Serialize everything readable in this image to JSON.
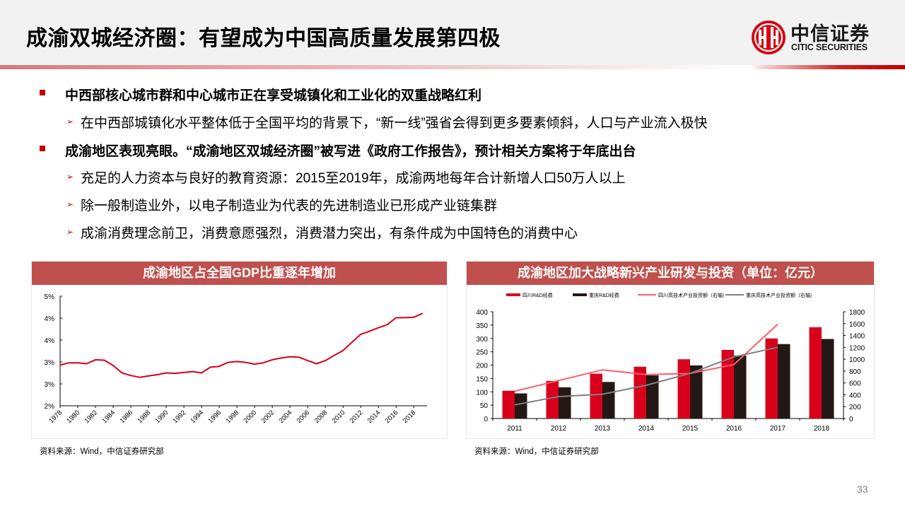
{
  "header": {
    "title": "成渝双城经济圈：有望成为中国高质量发展第四极",
    "logo_cn": "中信证券",
    "logo_en": "CITIC SECURITIES"
  },
  "bullets": [
    {
      "level": 1,
      "text": "中西部核心城市群和中心城市正在享受城镇化和工业化的双重战略红利"
    },
    {
      "level": 2,
      "text": "在中西部城镇化水平整体低于全国平均的背景下，“新一线”强省会得到更多要素倾斜，人口与产业流入极快"
    },
    {
      "level": 1,
      "text": "成渝地区表现亮眼。“成渝地区双城经济圈”被写进《政府工作报告》，预计相关方案将于年底出台"
    },
    {
      "level": 2,
      "text": "充足的人力资本与良好的教育资源：2015至2019年，成渝两地每年合计新增人口50万人以上"
    },
    {
      "level": 2,
      "text": "除一般制造业外，以电子制造业为代表的先进制造业已形成产业链集群"
    },
    {
      "level": 2,
      "text": "成渝消费理念前卫，消费意愿强烈，消费潜力突出，有条件成为中国特色的消费中心"
    }
  ],
  "colors": {
    "accent": "#c00000",
    "panel_header": "#c0504d",
    "line_red": "#d9001b",
    "bar_red": "#d9001b",
    "bar_black": "#231815",
    "line_pink": "#ff5c6c",
    "line_gray": "#7f7f7f"
  },
  "chart_data": [
    {
      "type": "line",
      "title": "成渝地区占全国GDP比重逐年增加",
      "xlabel": "",
      "ylabel": "",
      "ylim": [
        2.5,
        5.0
      ],
      "ytick_values": [
        2.5,
        3.0,
        3.5,
        4.0,
        4.5,
        5.0
      ],
      "ytick_labels": [
        "2%",
        "3%",
        "3%",
        "4%",
        "4%",
        "5%"
      ],
      "xtick_labels": [
        "1978",
        "1980",
        "1982",
        "1984",
        "1986",
        "1988",
        "1990",
        "1992",
        "1994",
        "1996",
        "1998",
        "2000",
        "2002",
        "2004",
        "2006",
        "2008",
        "2010",
        "2012",
        "2014",
        "2016",
        "2018"
      ],
      "grid": false,
      "legend": null,
      "x": [
        1978,
        1979,
        1980,
        1981,
        1982,
        1983,
        1984,
        1985,
        1986,
        1987,
        1988,
        1989,
        1990,
        1991,
        1992,
        1993,
        1994,
        1995,
        1996,
        1997,
        1998,
        1999,
        2000,
        2001,
        2002,
        2003,
        2004,
        2005,
        2006,
        2007,
        2008,
        2009,
        2010,
        2011,
        2012,
        2013,
        2014,
        2015,
        2016,
        2017,
        2018,
        2019
      ],
      "series": [
        {
          "name": "成渝地区占全国GDP比重",
          "color": "#d9001b",
          "values": [
            3.43,
            3.48,
            3.48,
            3.46,
            3.55,
            3.54,
            3.42,
            3.25,
            3.19,
            3.15,
            3.18,
            3.21,
            3.25,
            3.24,
            3.26,
            3.28,
            3.25,
            3.38,
            3.4,
            3.49,
            3.51,
            3.49,
            3.45,
            3.48,
            3.55,
            3.59,
            3.62,
            3.61,
            3.53,
            3.46,
            3.53,
            3.65,
            3.76,
            3.95,
            4.13,
            4.2,
            4.28,
            4.35,
            4.51,
            4.51,
            4.52,
            4.61
          ]
        }
      ],
      "source": "资料来源：Wind，中信证券研究部"
    },
    {
      "type": "bar",
      "title": "成渝地区加大战略新兴产业研发与投资（单位：亿元）",
      "categories": [
        "2011",
        "2012",
        "2013",
        "2014",
        "2015",
        "2016",
        "2017",
        "2018"
      ],
      "ylim": [
        0,
        400
      ],
      "ytick_labels": [
        "0",
        "50",
        "100",
        "150",
        "200",
        "250",
        "300",
        "350",
        "400"
      ],
      "y2lim": [
        0,
        1800
      ],
      "y2tick_labels": [
        "0",
        "200",
        "400",
        "600",
        "800",
        "1000",
        "1200",
        "1400",
        "1600",
        "1800"
      ],
      "grid": false,
      "legend_position": "top",
      "series": [
        {
          "name": "四川R&D经费",
          "type": "bar",
          "axis": "left",
          "color": "#d9001b",
          "values": [
            104,
            141,
            168,
            194,
            222,
            257,
            300,
            342
          ]
        },
        {
          "name": "重庆R&D经费",
          "type": "bar",
          "axis": "left",
          "color": "#231815",
          "values": [
            94,
            117,
            137,
            162,
            199,
            236,
            279,
            298
          ]
        },
        {
          "name": "四川高技术产业投资额（右轴）",
          "type": "line",
          "axis": "right",
          "color": "#ff5c6c",
          "values": [
            460,
            640,
            820,
            740,
            760,
            910,
            1590,
            null
          ]
        },
        {
          "name": "重庆高技术产业投资额（右轴）",
          "type": "line",
          "axis": "right",
          "color": "#7f7f7f",
          "values": [
            230,
            370,
            410,
            560,
            760,
            1040,
            1200,
            null
          ]
        }
      ],
      "source": "资料来源：Wind，中信证券研究部"
    }
  ],
  "footer": {
    "page_number": "33"
  }
}
